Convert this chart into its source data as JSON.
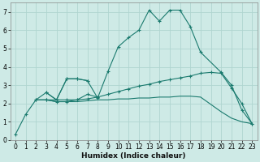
{
  "xlabel": "Humidex (Indice chaleur)",
  "xlim": [
    -0.5,
    23.5
  ],
  "ylim": [
    0,
    7.5
  ],
  "yticks": [
    0,
    1,
    2,
    3,
    4,
    5,
    6,
    7
  ],
  "xticks": [
    0,
    1,
    2,
    3,
    4,
    5,
    6,
    7,
    8,
    9,
    10,
    11,
    12,
    13,
    14,
    15,
    16,
    17,
    18,
    19,
    20,
    21,
    22,
    23
  ],
  "background_color": "#ceeae6",
  "line_color": "#1a7a6e",
  "grid_color": "#b0d5d0",
  "line1": {
    "x": [
      0,
      1,
      2,
      3,
      4,
      5,
      6,
      7,
      8,
      9,
      10,
      11,
      12,
      13,
      14,
      15,
      16,
      17,
      18,
      20,
      21,
      22,
      23
    ],
    "y": [
      0.3,
      1.4,
      2.2,
      2.6,
      2.2,
      3.35,
      3.35,
      3.25,
      2.3,
      3.75,
      5.1,
      5.6,
      6.0,
      7.1,
      6.5,
      7.1,
      7.1,
      6.2,
      4.8,
      3.7,
      3.0,
      1.65,
      0.9
    ]
  },
  "line2": {
    "x": [
      2,
      3,
      4,
      5,
      6,
      7,
      8,
      9,
      10,
      11,
      12,
      13,
      14,
      15,
      16,
      17,
      18,
      19,
      20,
      21,
      22,
      23
    ],
    "y": [
      2.2,
      2.2,
      2.1,
      2.1,
      2.2,
      2.25,
      2.35,
      2.5,
      2.65,
      2.8,
      2.95,
      3.05,
      3.2,
      3.3,
      3.4,
      3.5,
      3.65,
      3.7,
      3.65,
      2.85,
      2.0,
      0.9
    ]
  },
  "line3": {
    "x": [
      2,
      3,
      4,
      5,
      6,
      7,
      8,
      9,
      10,
      11,
      12,
      13,
      14,
      15,
      16,
      17,
      18,
      19,
      20,
      21,
      22,
      23
    ],
    "y": [
      2.2,
      2.2,
      2.1,
      2.1,
      2.1,
      2.15,
      2.2,
      2.2,
      2.25,
      2.25,
      2.3,
      2.3,
      2.35,
      2.35,
      2.4,
      2.4,
      2.35,
      1.95,
      1.55,
      1.2,
      1.0,
      0.9
    ]
  },
  "line4_cluster": {
    "x": [
      3,
      4,
      5,
      6,
      7
    ],
    "y": [
      2.6,
      2.2,
      3.35,
      3.35,
      3.25
    ]
  },
  "line5_cluster": {
    "x": [
      3,
      4,
      5,
      6,
      7,
      8
    ],
    "y": [
      2.2,
      2.2,
      2.2,
      2.2,
      2.5,
      2.35
    ]
  }
}
